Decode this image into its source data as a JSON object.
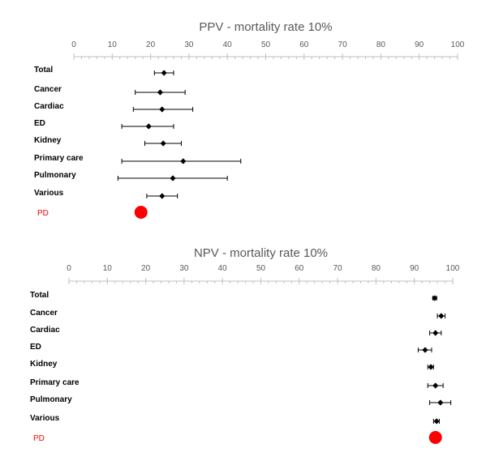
{
  "chart_data": [
    {
      "type": "forest",
      "title": "PPV - mortality rate 10%",
      "xlim": [
        0,
        100
      ],
      "x_ticks": [
        "0",
        "10",
        "20",
        "30",
        "40",
        "50",
        "60",
        "70",
        "80",
        "90",
        "100"
      ],
      "categories": [
        "Total",
        "Cancer",
        "Cardiac",
        "ED",
        "Kidney",
        "Primary care",
        "Pulmonary",
        "Various"
      ],
      "estimate": [
        23.5,
        22.5,
        23.0,
        19.5,
        23.3,
        28.5,
        25.8,
        23.0
      ],
      "ci_low": [
        21.0,
        16.0,
        15.5,
        12.5,
        18.5,
        12.5,
        11.5,
        19.0
      ],
      "ci_high": [
        26.0,
        29.0,
        31.0,
        26.0,
        28.0,
        43.5,
        40.0,
        27.0
      ],
      "highlight": {
        "label": "PD",
        "value": 17.5,
        "color": "#ff0000"
      },
      "grid": false
    },
    {
      "type": "forest",
      "title": "NPV - mortality rate 10%",
      "xlim": [
        0,
        100
      ],
      "x_ticks": [
        "0",
        "10",
        "20",
        "30",
        "40",
        "50",
        "60",
        "70",
        "80",
        "90",
        "100"
      ],
      "categories": [
        "Total",
        "Cancer",
        "Cardiac",
        "ED",
        "Kidney",
        "Primary care",
        "Pulmonary",
        "Various"
      ],
      "estimate": [
        95.3,
        97.0,
        95.5,
        92.8,
        94.3,
        95.5,
        96.8,
        95.8
      ],
      "ci_low": [
        94.8,
        96.0,
        94.0,
        91.0,
        93.5,
        93.5,
        94.0,
        95.0
      ],
      "ci_high": [
        95.8,
        98.0,
        97.0,
        94.5,
        95.0,
        97.5,
        99.5,
        96.5
      ],
      "highlight": {
        "label": "PD",
        "value": 95.5,
        "color": "#ff0000"
      },
      "grid": false
    }
  ]
}
